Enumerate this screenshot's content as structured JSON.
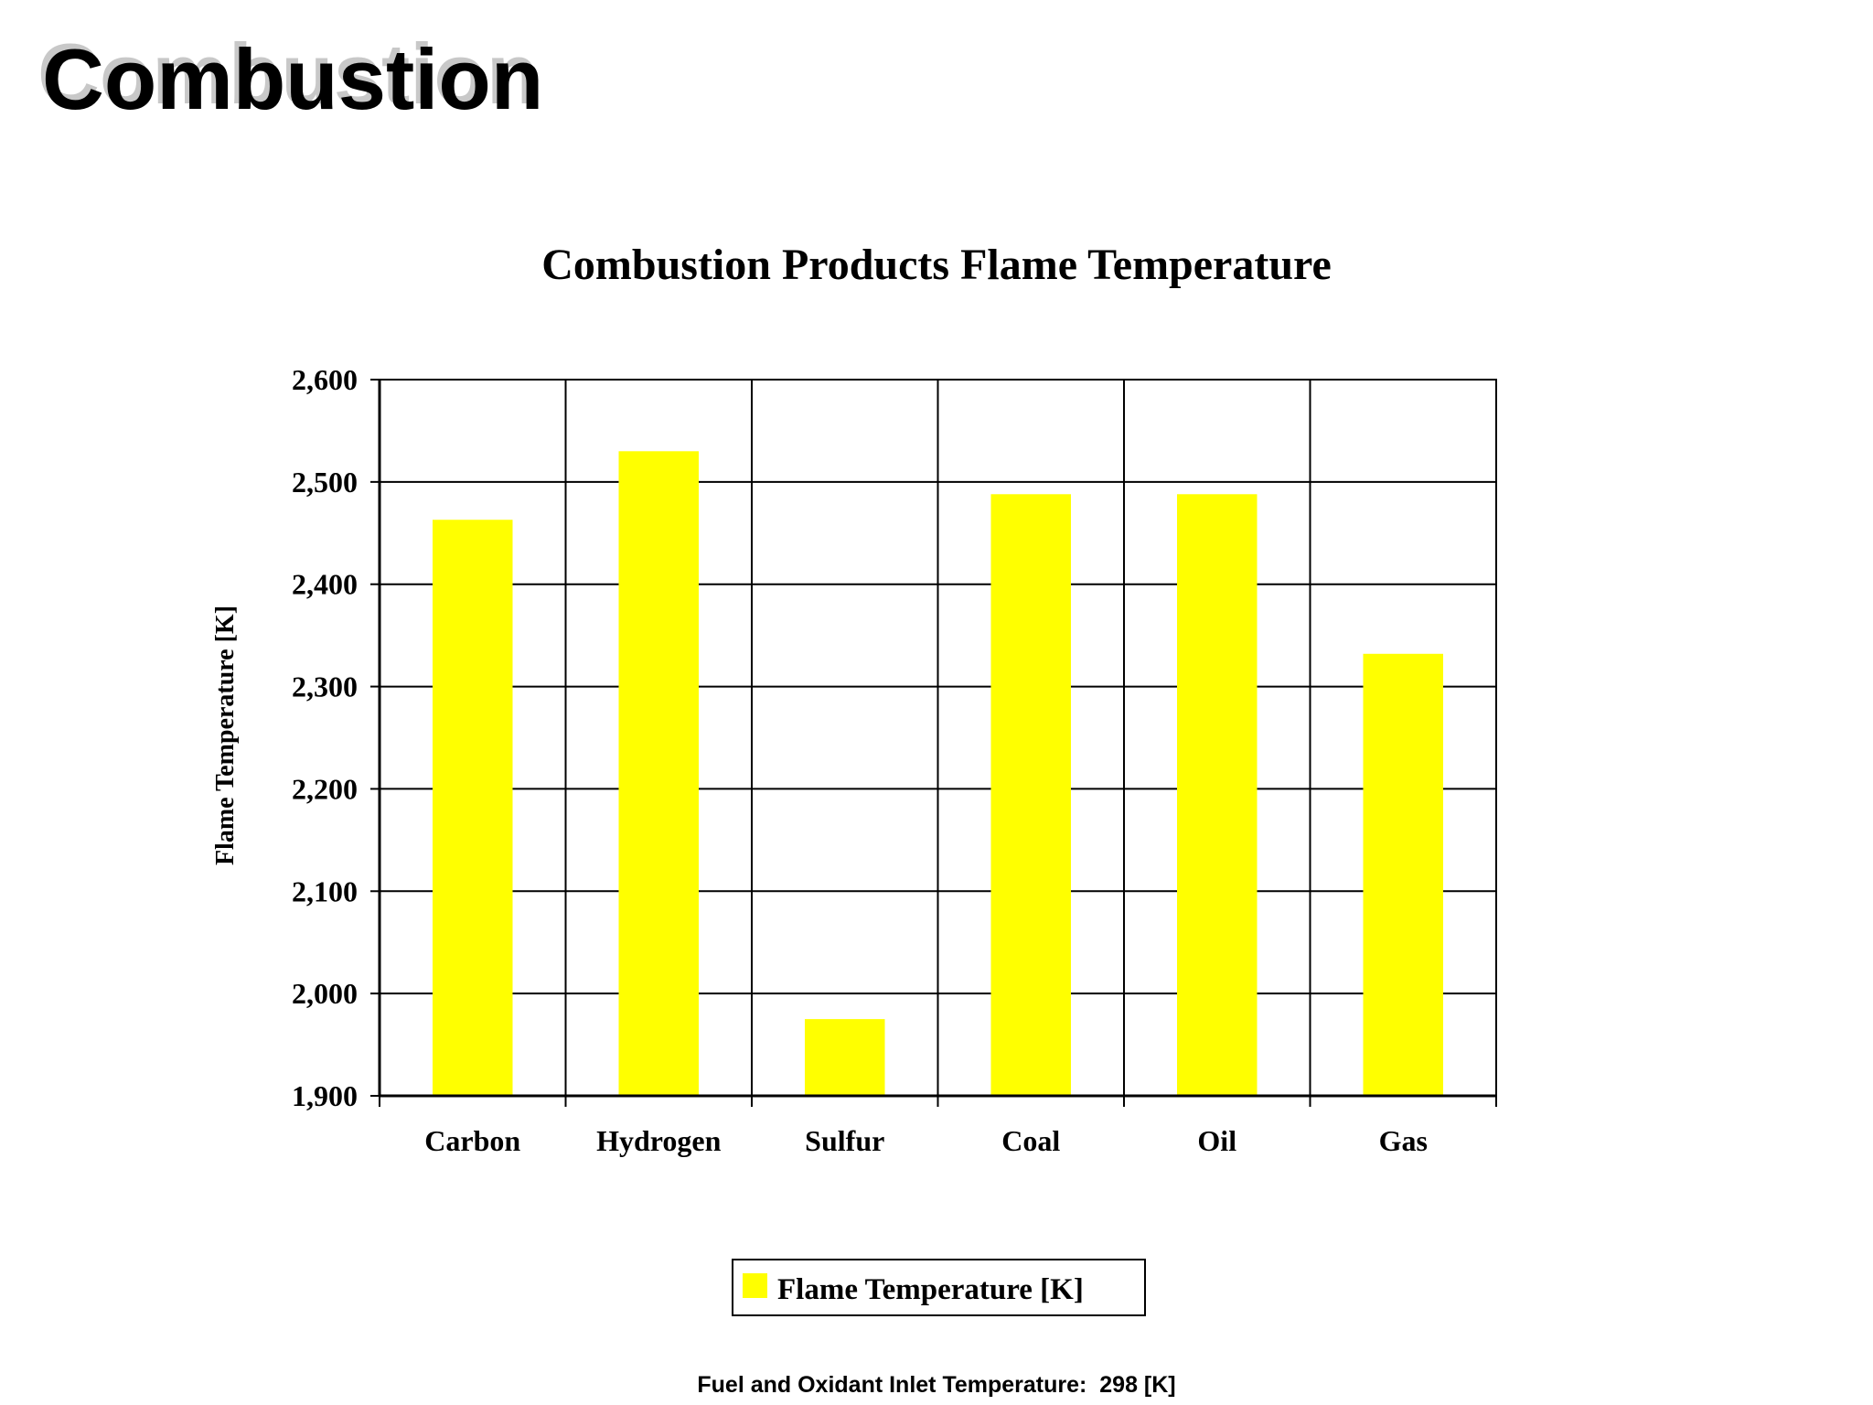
{
  "slide": {
    "title": "Combustion",
    "footnote": "Fuel and Oxidant Inlet Temperature:  298 [K]"
  },
  "colors": {
    "bar": "#ffff00",
    "grid": "#000000",
    "text": "#000000",
    "title_shadow": "#c8c8c8"
  },
  "chart_data": {
    "type": "bar",
    "title": "Combustion Products Flame Temperature",
    "xlabel": "",
    "ylabel": "Flame Temperature [K]",
    "categories": [
      "Carbon",
      "Hydrogen",
      "Sulfur",
      "Coal",
      "Oil",
      "Gas"
    ],
    "series": [
      {
        "name": "Flame Temperature [K]",
        "values": [
          2463,
          2530,
          1975,
          2488,
          2488,
          2332
        ]
      }
    ],
    "ylim": [
      1900,
      2600
    ],
    "yticks": [
      "1,900",
      "2,000",
      "2,100",
      "2,200",
      "2,300",
      "2,400",
      "2,500",
      "2,600"
    ],
    "grid": true,
    "legend_position": "bottom"
  }
}
